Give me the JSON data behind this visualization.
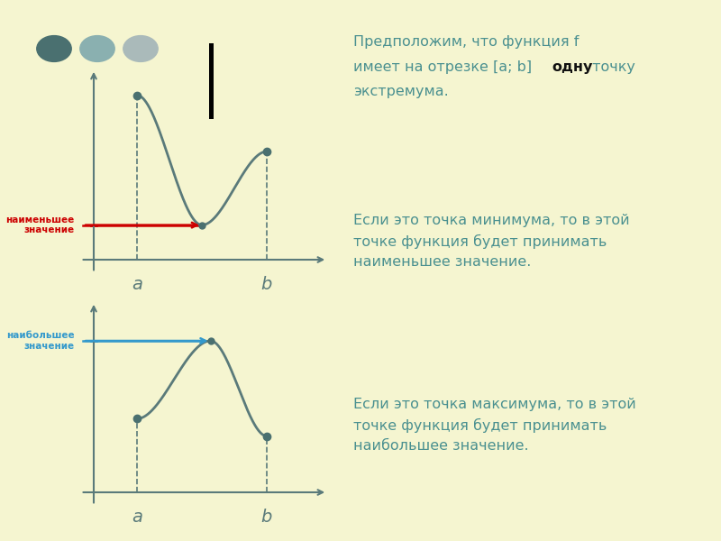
{
  "bg_color": "#f5f5d0",
  "border_color": "#4ab0c8",
  "text_color": "#4a9090",
  "curve_color": "#5a7a7a",
  "dashed_color": "#5a7a7a",
  "red_color": "#cc0000",
  "blue_color": "#3399cc",
  "dot_color": "#4a7070",
  "axis_color": "#5a7a7a",
  "black_color": "#111111",
  "circle_colors": [
    "#4a7070",
    "#8ab0b0",
    "#aababa"
  ],
  "label_min": "наименьшее\nзначение",
  "label_max": "наибольшее\nзначение",
  "top1": "Предположим, что функция f",
  "top2a": "имеет на отрезке [a; b]  ",
  "top2b": "одну",
  "top2c": " точку",
  "top3": "экстремума.",
  "text_min": "Если это точка минимума, то в этой\nточке функция будет принимать\nнаименьшее значение.",
  "text_max": "Если это точка максимума, то в этой\nточке функция будет принимать\nнаибольшее значение."
}
